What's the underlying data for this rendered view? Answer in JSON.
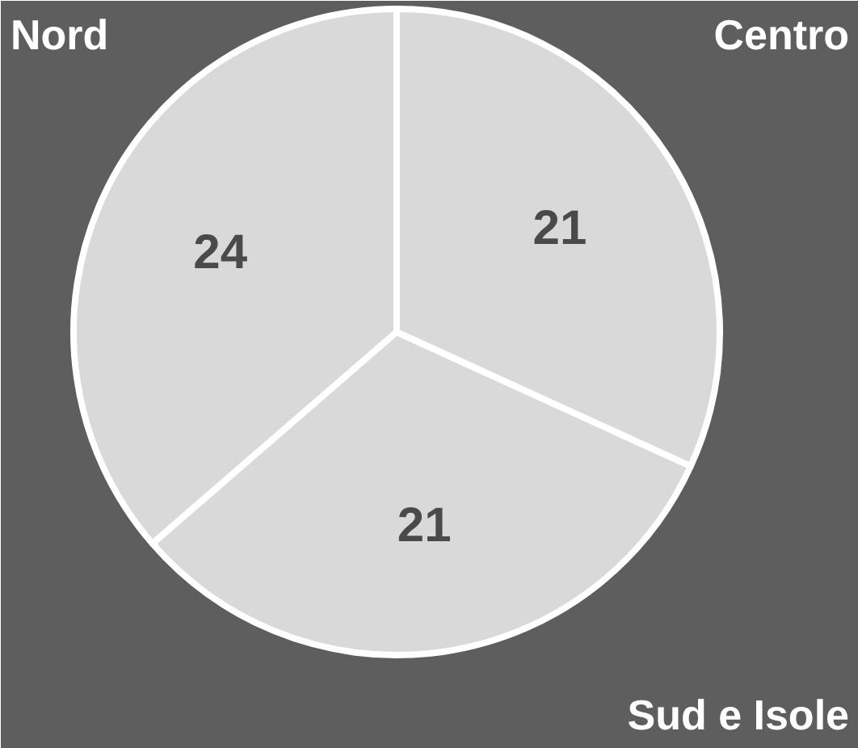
{
  "chart_data": {
    "type": "pie",
    "categories": [
      "Nord",
      "Sud e Isole",
      "Centro"
    ],
    "values": [
      24,
      21,
      21
    ],
    "colors": [
      "#d9d9d9",
      "#d9d9d9",
      "#d9d9d9"
    ],
    "data_labels": true
  }
}
